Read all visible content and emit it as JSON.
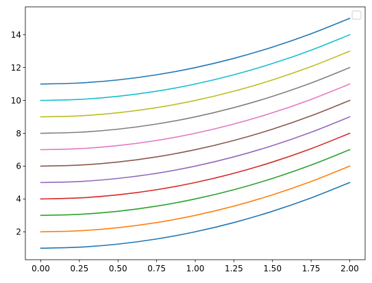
{
  "chart_data": {
    "type": "line",
    "title": "",
    "xlabel": "",
    "ylabel": "",
    "xlim": [
      -0.1,
      2.1
    ],
    "ylim": [
      0.3,
      15.7
    ],
    "x_ticks": [
      0.0,
      0.25,
      0.5,
      0.75,
      1.0,
      1.25,
      1.5,
      1.75,
      2.0
    ],
    "x_tick_labels": [
      "0.00",
      "0.25",
      "0.50",
      "0.75",
      "1.00",
      "1.25",
      "1.50",
      "1.75",
      "2.00"
    ],
    "y_ticks": [
      2,
      4,
      6,
      8,
      10,
      12,
      14
    ],
    "y_tick_labels": [
      "2",
      "4",
      "6",
      "8",
      "10",
      "12",
      "14"
    ],
    "grid": false,
    "legend": {
      "placement": "top-right",
      "entries": []
    },
    "x": [
      0,
      0.25,
      0.5,
      0.75,
      1.0,
      1.25,
      1.5,
      1.75,
      2.0
    ],
    "series": [
      {
        "color": "#1f77b4",
        "values": [
          1.0,
          1.0625,
          1.25,
          1.5625,
          2.0,
          2.5625,
          3.25,
          4.0625,
          5.0
        ]
      },
      {
        "color": "#ff7f0e",
        "values": [
          2.0,
          2.0625,
          2.25,
          2.5625,
          3.0,
          3.5625,
          4.25,
          5.0625,
          6.0
        ]
      },
      {
        "color": "#2ca02c",
        "values": [
          3.0,
          3.0625,
          3.25,
          3.5625,
          4.0,
          4.5625,
          5.25,
          6.0625,
          7.0
        ]
      },
      {
        "color": "#d62728",
        "values": [
          4.0,
          4.0625,
          4.25,
          4.5625,
          5.0,
          5.5625,
          6.25,
          7.0625,
          8.0
        ]
      },
      {
        "color": "#9467bd",
        "values": [
          5.0,
          5.0625,
          5.25,
          5.5625,
          6.0,
          6.5625,
          7.25,
          8.0625,
          9.0
        ]
      },
      {
        "color": "#8c564b",
        "values": [
          6.0,
          6.0625,
          6.25,
          6.5625,
          7.0,
          7.5625,
          8.25,
          9.0625,
          10.0
        ]
      },
      {
        "color": "#e377c2",
        "values": [
          7.0,
          7.0625,
          7.25,
          7.5625,
          8.0,
          8.5625,
          9.25,
          10.0625,
          11.0
        ]
      },
      {
        "color": "#7f7f7f",
        "values": [
          8.0,
          8.0625,
          8.25,
          8.5625,
          9.0,
          9.5625,
          10.25,
          11.0625,
          12.0
        ]
      },
      {
        "color": "#bcbd22",
        "values": [
          9.0,
          9.0625,
          9.25,
          9.5625,
          10.0,
          10.5625,
          11.25,
          12.0625,
          13.0
        ]
      },
      {
        "color": "#17becf",
        "values": [
          10.0,
          10.0625,
          10.25,
          10.5625,
          11.0,
          11.5625,
          12.25,
          13.0625,
          14.0
        ]
      },
      {
        "color": "#1f77b4",
        "values": [
          11.0,
          11.0625,
          11.25,
          11.5625,
          12.0,
          12.5625,
          13.25,
          14.0625,
          15.0
        ]
      }
    ]
  }
}
